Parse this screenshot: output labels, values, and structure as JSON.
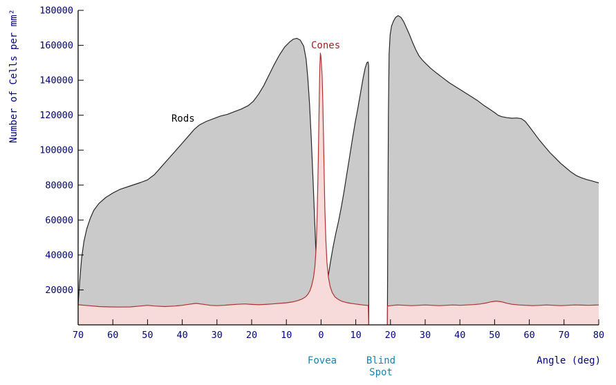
{
  "chart_data": {
    "type": "area",
    "xlabel": "Angle (deg)",
    "ylabel": "Number of Cells per mm²",
    "xlim": [
      -70,
      80
    ],
    "ylim": [
      0,
      180000
    ],
    "grid": false,
    "legend": "none",
    "x_ticks": [
      {
        "v": -70,
        "label": "70"
      },
      {
        "v": -60,
        "label": "60"
      },
      {
        "v": -50,
        "label": "50"
      },
      {
        "v": -40,
        "label": "40"
      },
      {
        "v": -30,
        "label": "30"
      },
      {
        "v": -20,
        "label": "20"
      },
      {
        "v": -10,
        "label": "10"
      },
      {
        "v": 0,
        "label": "0"
      },
      {
        "v": 10,
        "label": "10"
      },
      {
        "v": 20,
        "label": "20"
      },
      {
        "v": 30,
        "label": "30"
      },
      {
        "v": 40,
        "label": "40"
      },
      {
        "v": 50,
        "label": "50"
      },
      {
        "v": 60,
        "label": "60"
      },
      {
        "v": 70,
        "label": "70"
      },
      {
        "v": 80,
        "label": "80"
      }
    ],
    "y_ticks": [
      {
        "v": 20000,
        "label": "20000"
      },
      {
        "v": 40000,
        "label": "40000"
      },
      {
        "v": 60000,
        "label": "60000"
      },
      {
        "v": 80000,
        "label": "80000"
      },
      {
        "v": 100000,
        "label": "100000"
      },
      {
        "v": 120000,
        "label": "120000"
      },
      {
        "v": 140000,
        "label": "140000"
      },
      {
        "v": 160000,
        "label": "160000"
      },
      {
        "v": 180000,
        "label": "180000"
      }
    ],
    "blind_spot_deg": [
      13.75,
      19.1
    ],
    "series": [
      {
        "name": "Rods",
        "stroke": "#262626",
        "fill": "#cacaca",
        "segments": [
          [
            [
              -70,
              12000
            ],
            [
              -69.5,
              26000
            ],
            [
              -69,
              38000
            ],
            [
              -68.3,
              48000
            ],
            [
              -67.5,
              55000
            ],
            [
              -66.5,
              61000
            ],
            [
              -65.5,
              65500
            ],
            [
              -64,
              69500
            ],
            [
              -62,
              73000
            ],
            [
              -60,
              75500
            ],
            [
              -58,
              77500
            ],
            [
              -55,
              79500
            ],
            [
              -52,
              81500
            ],
            [
              -50,
              83000
            ],
            [
              -48,
              86000
            ],
            [
              -46,
              90500
            ],
            [
              -44,
              95000
            ],
            [
              -42,
              99500
            ],
            [
              -40,
              104000
            ],
            [
              -38,
              108500
            ],
            [
              -36.5,
              112000
            ],
            [
              -35,
              114500
            ],
            [
              -33,
              116500
            ],
            [
              -31,
              118000
            ],
            [
              -29,
              119500
            ],
            [
              -27,
              120500
            ],
            [
              -25,
              122000
            ],
            [
              -23,
              123500
            ],
            [
              -21,
              125500
            ],
            [
              -19.5,
              128000
            ],
            [
              -18,
              132000
            ],
            [
              -16.5,
              137000
            ],
            [
              -15,
              143000
            ],
            [
              -13.5,
              149000
            ],
            [
              -12,
              154500
            ],
            [
              -10.5,
              159000
            ],
            [
              -9,
              162000
            ],
            [
              -8,
              163500
            ],
            [
              -7,
              164000
            ],
            [
              -6,
              163000
            ],
            [
              -5,
              159500
            ],
            [
              -4.3,
              152000
            ],
            [
              -3.8,
              141000
            ],
            [
              -3.3,
              126000
            ],
            [
              -2.8,
              106000
            ],
            [
              -2.3,
              82000
            ],
            [
              -1.8,
              57000
            ],
            [
              -1.3,
              32000
            ],
            [
              -0.9,
              12000
            ],
            [
              -0.65,
              0
            ]
          ],
          [
            [
              0.7,
              0
            ],
            [
              1.0,
              8000
            ],
            [
              1.4,
              17000
            ],
            [
              2.0,
              27000
            ],
            [
              2.7,
              36000
            ],
            [
              3.4,
              44000
            ],
            [
              4.2,
              52000
            ],
            [
              5.0,
              59000
            ],
            [
              5.8,
              67000
            ],
            [
              6.6,
              76000
            ],
            [
              7.4,
              86000
            ],
            [
              8.2,
              96000
            ],
            [
              9.0,
              106000
            ],
            [
              9.8,
              115500
            ],
            [
              10.6,
              124000
            ],
            [
              11.4,
              133000
            ],
            [
              12.1,
              141000
            ],
            [
              12.7,
              147000
            ],
            [
              13.2,
              150000
            ],
            [
              13.55,
              150500
            ],
            [
              13.7,
              148000
            ],
            [
              13.75,
              0
            ]
          ],
          [
            [
              19.1,
              0
            ],
            [
              19.25,
              60000
            ],
            [
              19.4,
              120000
            ],
            [
              19.6,
              155000
            ],
            [
              19.9,
              166000
            ],
            [
              20.3,
              171000
            ],
            [
              20.9,
              174000
            ],
            [
              21.5,
              176000
            ],
            [
              22.2,
              177000
            ],
            [
              23,
              176000
            ],
            [
              23.8,
              173500
            ],
            [
              24.6,
              170000
            ],
            [
              25.5,
              166000
            ],
            [
              26.4,
              161500
            ],
            [
              27.3,
              157500
            ],
            [
              28.2,
              154000
            ],
            [
              29.2,
              151500
            ],
            [
              30.2,
              149500
            ],
            [
              31.5,
              147000
            ],
            [
              33,
              144500
            ],
            [
              35,
              141500
            ],
            [
              37,
              138500
            ],
            [
              39,
              136000
            ],
            [
              41,
              133500
            ],
            [
              43,
              131000
            ],
            [
              45,
              128500
            ],
            [
              47,
              125500
            ],
            [
              48.5,
              123500
            ],
            [
              50,
              121500
            ],
            [
              51,
              120000
            ],
            [
              52,
              119200
            ],
            [
              53.5,
              118600
            ],
            [
              55,
              118300
            ],
            [
              56.5,
              118400
            ],
            [
              57.7,
              118000
            ],
            [
              58.8,
              116500
            ],
            [
              60,
              113500
            ],
            [
              61.5,
              109500
            ],
            [
              63,
              105500
            ],
            [
              64.5,
              102000
            ],
            [
              66,
              98500
            ],
            [
              67.5,
              95500
            ],
            [
              69,
              92500
            ],
            [
              70.5,
              90000
            ],
            [
              72,
              87500
            ],
            [
              73.5,
              85500
            ],
            [
              75,
              84200
            ],
            [
              76.5,
              83200
            ],
            [
              78,
              82400
            ],
            [
              79,
              81800
            ],
            [
              80,
              81300
            ]
          ]
        ]
      },
      {
        "name": "Cones",
        "stroke": "#b03030",
        "fill": "#f7dada",
        "segments": [
          [
            [
              -70,
              11500
            ],
            [
              -67,
              11000
            ],
            [
              -64,
              10500
            ],
            [
              -61,
              10300
            ],
            [
              -58,
              10200
            ],
            [
              -55,
              10300
            ],
            [
              -52,
              10800
            ],
            [
              -50,
              11200
            ],
            [
              -48,
              10800
            ],
            [
              -45,
              10500
            ],
            [
              -42,
              10800
            ],
            [
              -40,
              11200
            ],
            [
              -38,
              11800
            ],
            [
              -36,
              12300
            ],
            [
              -34,
              11800
            ],
            [
              -32,
              11200
            ],
            [
              -30,
              11000
            ],
            [
              -28,
              11200
            ],
            [
              -26,
              11500
            ],
            [
              -24,
              11800
            ],
            [
              -22,
              12000
            ],
            [
              -20,
              11700
            ],
            [
              -18,
              11500
            ],
            [
              -16,
              11700
            ],
            [
              -14,
              12000
            ],
            [
              -12,
              12300
            ],
            [
              -10,
              12600
            ],
            [
              -8,
              13200
            ],
            [
              -6.5,
              14000
            ],
            [
              -5.5,
              14800
            ],
            [
              -4.5,
              16000
            ],
            [
              -3.8,
              17500
            ],
            [
              -3.2,
              19500
            ],
            [
              -2.7,
              22500
            ],
            [
              -2.2,
              27000
            ],
            [
              -1.8,
              33000
            ],
            [
              -1.4,
              45000
            ],
            [
              -1.1,
              65000
            ],
            [
              -0.8,
              95000
            ],
            [
              -0.55,
              125000
            ],
            [
              -0.35,
              148000
            ],
            [
              -0.2,
              155500
            ],
            [
              -0.05,
              154000
            ],
            [
              0.1,
              149000
            ],
            [
              0.3,
              143000
            ],
            [
              0.5,
              128000
            ],
            [
              0.7,
              108000
            ],
            [
              0.9,
              86000
            ],
            [
              1.1,
              66000
            ],
            [
              1.4,
              48000
            ],
            [
              1.7,
              36000
            ],
            [
              2.1,
              27500
            ],
            [
              2.6,
              22000
            ],
            [
              3.2,
              18500
            ],
            [
              4,
              16000
            ],
            [
              5,
              14500
            ],
            [
              6,
              13500
            ],
            [
              7.5,
              12700
            ],
            [
              9,
              12200
            ],
            [
              10.5,
              11800
            ],
            [
              12,
              11400
            ],
            [
              13,
              11200
            ],
            [
              13.6,
              11100
            ],
            [
              13.72,
              0
            ]
          ],
          [
            [
              19.1,
              0
            ],
            [
              19.15,
              10800
            ],
            [
              20,
              11000
            ],
            [
              22,
              11400
            ],
            [
              24,
              11200
            ],
            [
              26,
              11000
            ],
            [
              28,
              11200
            ],
            [
              30,
              11400
            ],
            [
              32,
              11200
            ],
            [
              34,
              11000
            ],
            [
              36,
              11200
            ],
            [
              38,
              11400
            ],
            [
              40,
              11200
            ],
            [
              42,
              11400
            ],
            [
              44,
              11600
            ],
            [
              46,
              12000
            ],
            [
              47.5,
              12500
            ],
            [
              49,
              13200
            ],
            [
              50.5,
              13600
            ],
            [
              52,
              13200
            ],
            [
              53.5,
              12400
            ],
            [
              55,
              11800
            ],
            [
              57,
              11400
            ],
            [
              59,
              11200
            ],
            [
              61,
              11000
            ],
            [
              63,
              11200
            ],
            [
              65,
              11400
            ],
            [
              67,
              11200
            ],
            [
              69,
              11000
            ],
            [
              71,
              11200
            ],
            [
              73,
              11400
            ],
            [
              75,
              11300
            ],
            [
              77,
              11200
            ],
            [
              79,
              11300
            ],
            [
              80,
              11400
            ]
          ]
        ]
      }
    ],
    "annotations": {
      "rods": "Rods",
      "cones": "Cones",
      "fovea": "Fovea",
      "blind_line1": "Blind",
      "blind_line2": "Spot",
      "x_axis": "Angle (deg)",
      "y_axis": "Number of Cells per mm²"
    },
    "colors": {
      "axis": "#000000",
      "tick_text": "#000080",
      "rods_label": "#000000",
      "cones_label": "#a02020",
      "fovea_blind": "#0e86b8"
    }
  }
}
